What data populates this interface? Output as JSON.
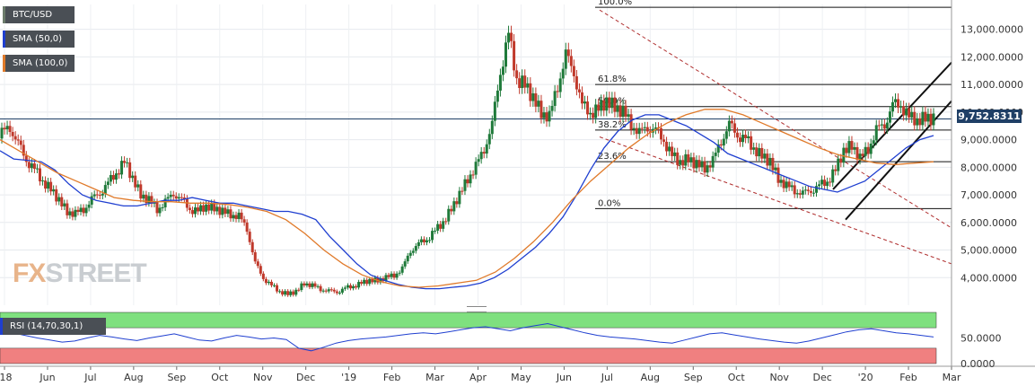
{
  "legend": {
    "pair": "BTC/USD",
    "sma50": "SMA (50,0)",
    "sma100": "SMA (100,0)"
  },
  "colors": {
    "candle_up": "#1f7a3a",
    "candle_down": "#c0392b",
    "sma50": "#1f3fd0",
    "sma100": "#e07a2a",
    "channel": "#111111",
    "trend_dashed": "#b03030",
    "rsi_line": "#1f3fd0",
    "rsi_overbought": "#7fe07f",
    "rsi_oversold": "#f08080"
  },
  "current_price_label": "9,752.8311",
  "watermark": {
    "fx": "FX",
    "street": "STREET"
  },
  "rsi_legend": "RSI (14,70,30,1)",
  "chart_data": {
    "type": "candlestick",
    "y_axis": {
      "ticks": [
        "13,000.0000",
        "12,000.0000",
        "11,000.0000",
        "10,000.0000",
        "9,000.0000",
        "8,000.0000",
        "7,000.0000",
        "6,000.0000",
        "5,000.0000",
        "4,000.0000"
      ],
      "tick_values": [
        13000,
        12000,
        11000,
        10000,
        9000,
        8000,
        7000,
        6000,
        5000,
        4000
      ],
      "ylim": [
        3000,
        13900
      ]
    },
    "x_axis": {
      "ticks": [
        "'18",
        "Jun",
        "Jul",
        "Aug",
        "Sep",
        "Oct",
        "Nov",
        "Dec",
        "'19",
        "Feb",
        "Mar",
        "Apr",
        "May",
        "Jun",
        "Jul",
        "Aug",
        "Sep",
        "Oct",
        "Nov",
        "Dec",
        "'20",
        "Feb",
        "Mar"
      ]
    },
    "fibonacci": [
      {
        "label": "100.0%",
        "value": 13800
      },
      {
        "label": "61.8%",
        "value": 11000
      },
      {
        "label": "50.0%",
        "value": 10200
      },
      {
        "label": "38.2%",
        "value": 9350
      },
      {
        "label": "23.6%",
        "value": 8200
      },
      {
        "label": "0.0%",
        "value": 6500
      }
    ],
    "current_price": 9752.83,
    "price_series": [
      9200,
      9500,
      8800,
      8300,
      7900,
      7500,
      7200,
      6800,
      6400,
      6300,
      6500,
      6800,
      7100,
      7400,
      7800,
      8200,
      7600,
      7000,
      6800,
      6500,
      6700,
      7100,
      6800,
      6500,
      6400,
      6600,
      6500,
      6400,
      6300,
      6200,
      5800,
      4500,
      4000,
      3700,
      3500,
      3400,
      3500,
      3800,
      3700,
      3600,
      3500,
      3500,
      3600,
      3700,
      3800,
      3900,
      3900,
      4000,
      4100,
      4300,
      5000,
      5200,
      5400,
      5700,
      6000,
      6500,
      7000,
      7600,
      8000,
      8700,
      9500,
      11500,
      12800,
      11200,
      11000,
      10500,
      10000,
      9800,
      11000,
      12000,
      11500,
      10200,
      10000,
      10100,
      10400,
      10200,
      10000,
      9600,
      9200,
      9500,
      9300,
      9000,
      8400,
      8200,
      8300,
      8100,
      8000,
      8200,
      9000,
      9500,
      9200,
      9000,
      8700,
      8400,
      8200,
      7600,
      7300,
      7200,
      7000,
      7200,
      7300,
      7500,
      7900,
      8600,
      8800,
      8300,
      8700,
      9300,
      9600,
      10200,
      10300,
      9800,
      9700,
      9800,
      9750
    ],
    "sma50_series": [
      8600,
      8300,
      8250,
      8200,
      7900,
      7400,
      7000,
      6800,
      6700,
      6600,
      6600,
      6700,
      6800,
      6800,
      6900,
      6800,
      6700,
      6700,
      6600,
      6500,
      6400,
      6400,
      6300,
      6100,
      5500,
      5000,
      4500,
      4100,
      3900,
      3750,
      3650,
      3600,
      3600,
      3650,
      3700,
      3800,
      4000,
      4300,
      4700,
      5100,
      5600,
      6200,
      7000,
      7900,
      8700,
      9300,
      9700,
      9900,
      9900,
      9700,
      9500,
      9200,
      8900,
      8500,
      8300,
      8100,
      7900,
      7700,
      7500,
      7300,
      7200,
      7100,
      7300,
      7500,
      7900,
      8300,
      8700,
      9000,
      9150
    ],
    "sma100_series": [
      9000,
      8600,
      8200,
      7800,
      7500,
      7200,
      6900,
      6800,
      6750,
      6750,
      6700,
      6700,
      6650,
      6550,
      6400,
      6100,
      5600,
      5000,
      4500,
      4100,
      3850,
      3700,
      3650,
      3700,
      3800,
      3900,
      4200,
      4700,
      5300,
      6000,
      6800,
      7500,
      8100,
      8700,
      9200,
      9600,
      9900,
      10100,
      10100,
      9900,
      9600,
      9300,
      9000,
      8700,
      8450,
      8300,
      8150,
      8100,
      8150,
      8200
    ],
    "rsi": {
      "ticks": [
        "50.0000",
        "0.0000"
      ],
      "overbought": 70,
      "oversold": 30,
      "series": [
        58,
        60,
        55,
        50,
        46,
        42,
        44,
        50,
        55,
        52,
        48,
        45,
        50,
        54,
        58,
        52,
        46,
        44,
        50,
        55,
        52,
        48,
        50,
        47,
        30,
        25,
        32,
        40,
        45,
        48,
        50,
        52,
        55,
        58,
        60,
        58,
        62,
        66,
        70,
        72,
        68,
        64,
        70,
        74,
        78,
        72,
        66,
        60,
        55,
        52,
        50,
        48,
        45,
        42,
        40,
        46,
        52,
        58,
        60,
        56,
        52,
        48,
        45,
        42,
        40,
        44,
        50,
        56,
        62,
        66,
        68,
        64,
        60,
        58,
        55,
        52
      ]
    }
  }
}
